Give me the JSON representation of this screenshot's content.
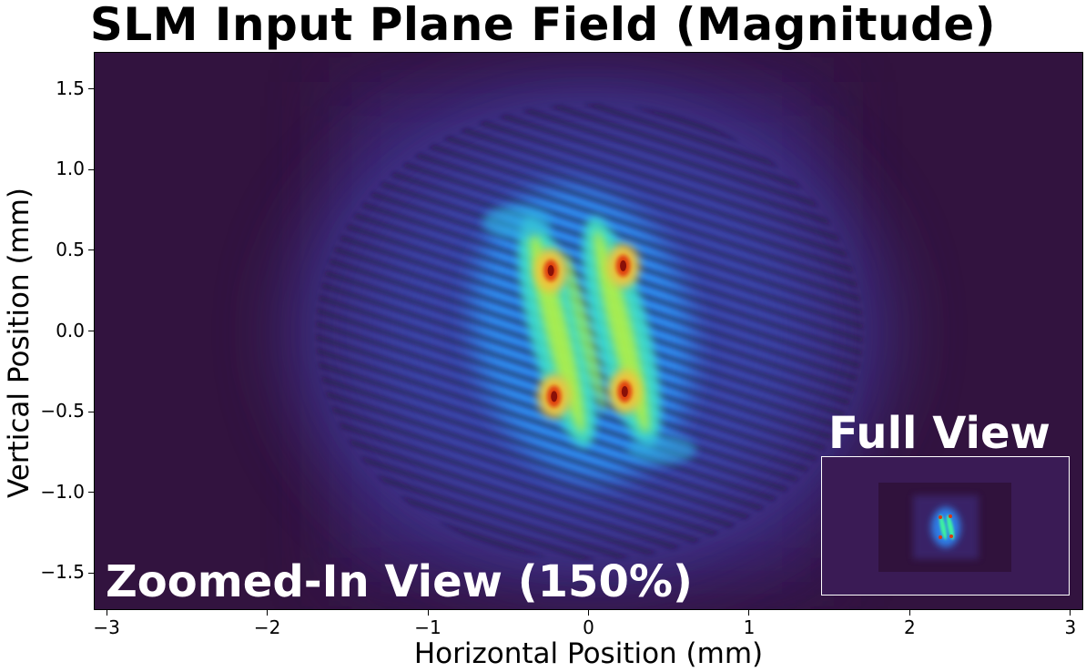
{
  "chart_data": {
    "type": "heatmap",
    "title": "SLM Input Plane Field (Magnitude)",
    "xlabel": "Horizontal Position (mm)",
    "ylabel": "Vertical Position (mm)",
    "xlim": [
      -3.08,
      3.08
    ],
    "ylim": [
      -1.73,
      1.73
    ],
    "x_ticks": [
      -3,
      -2,
      -1,
      0,
      1,
      2,
      3
    ],
    "x_tick_labels": [
      "−3",
      "−2",
      "−1",
      "0",
      "1",
      "2",
      "3"
    ],
    "y_ticks": [
      1.5,
      1.0,
      0.5,
      0.0,
      -0.5,
      -1.0,
      -1.5
    ],
    "y_tick_labels": [
      "1.5",
      "1.0",
      "0.5",
      "0.0",
      "−0.5",
      "−1.0",
      "−1.5"
    ],
    "colormap": "turbo",
    "background_color": "#32133f",
    "grid": false,
    "annotations": {
      "zoomed": "Zoomed-In View (150%)",
      "full": "Full View"
    },
    "hotspots": [
      {
        "x": -0.24,
        "y": 0.38,
        "level": "max"
      },
      {
        "x": 0.21,
        "y": 0.41,
        "level": "max"
      },
      {
        "x": -0.22,
        "y": -0.4,
        "level": "max"
      },
      {
        "x": 0.22,
        "y": -0.37,
        "level": "max"
      }
    ]
  }
}
